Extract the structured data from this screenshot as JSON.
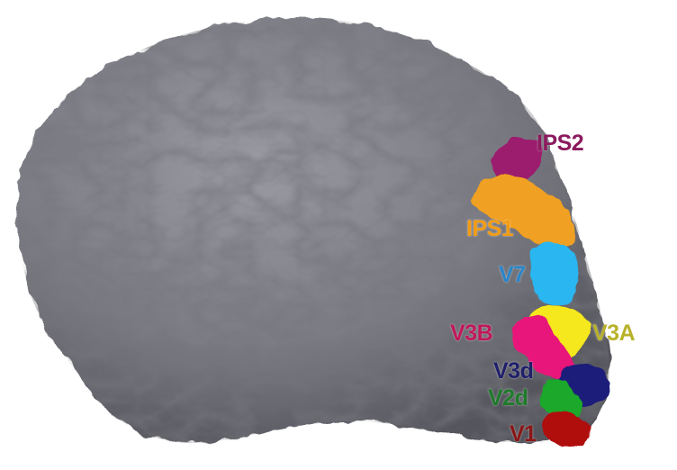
{
  "figure": {
    "labels": [
      {
        "id": "ips2",
        "text": "IPS2",
        "color": "#8b1a5e"
      },
      {
        "id": "ips1",
        "text": "IPS1",
        "color": "#f39c12"
      },
      {
        "id": "v7",
        "text": "V7",
        "color": "#2a86c9"
      },
      {
        "id": "v3b",
        "text": "V3B",
        "color": "#c2185b"
      },
      {
        "id": "v3a",
        "text": "V3A",
        "color": "#b8b22a"
      },
      {
        "id": "v3d",
        "text": "V3d",
        "color": "#1f1f6b"
      },
      {
        "id": "v2d",
        "text": "V2d",
        "color": "#1e7a2a"
      },
      {
        "id": "v1",
        "text": "V1",
        "color": "#8b1515"
      }
    ],
    "region_colors": {
      "cortex": "#7d7d86",
      "ips2": "#9c1a6e",
      "ips1": "#f0a020",
      "v7": "#29b6f0",
      "v3a": "#f5e81a",
      "v3b": "#e8197a",
      "v3d": "#1a1a7a",
      "v2d": "#1aa82a",
      "v1": "#b01010"
    }
  }
}
